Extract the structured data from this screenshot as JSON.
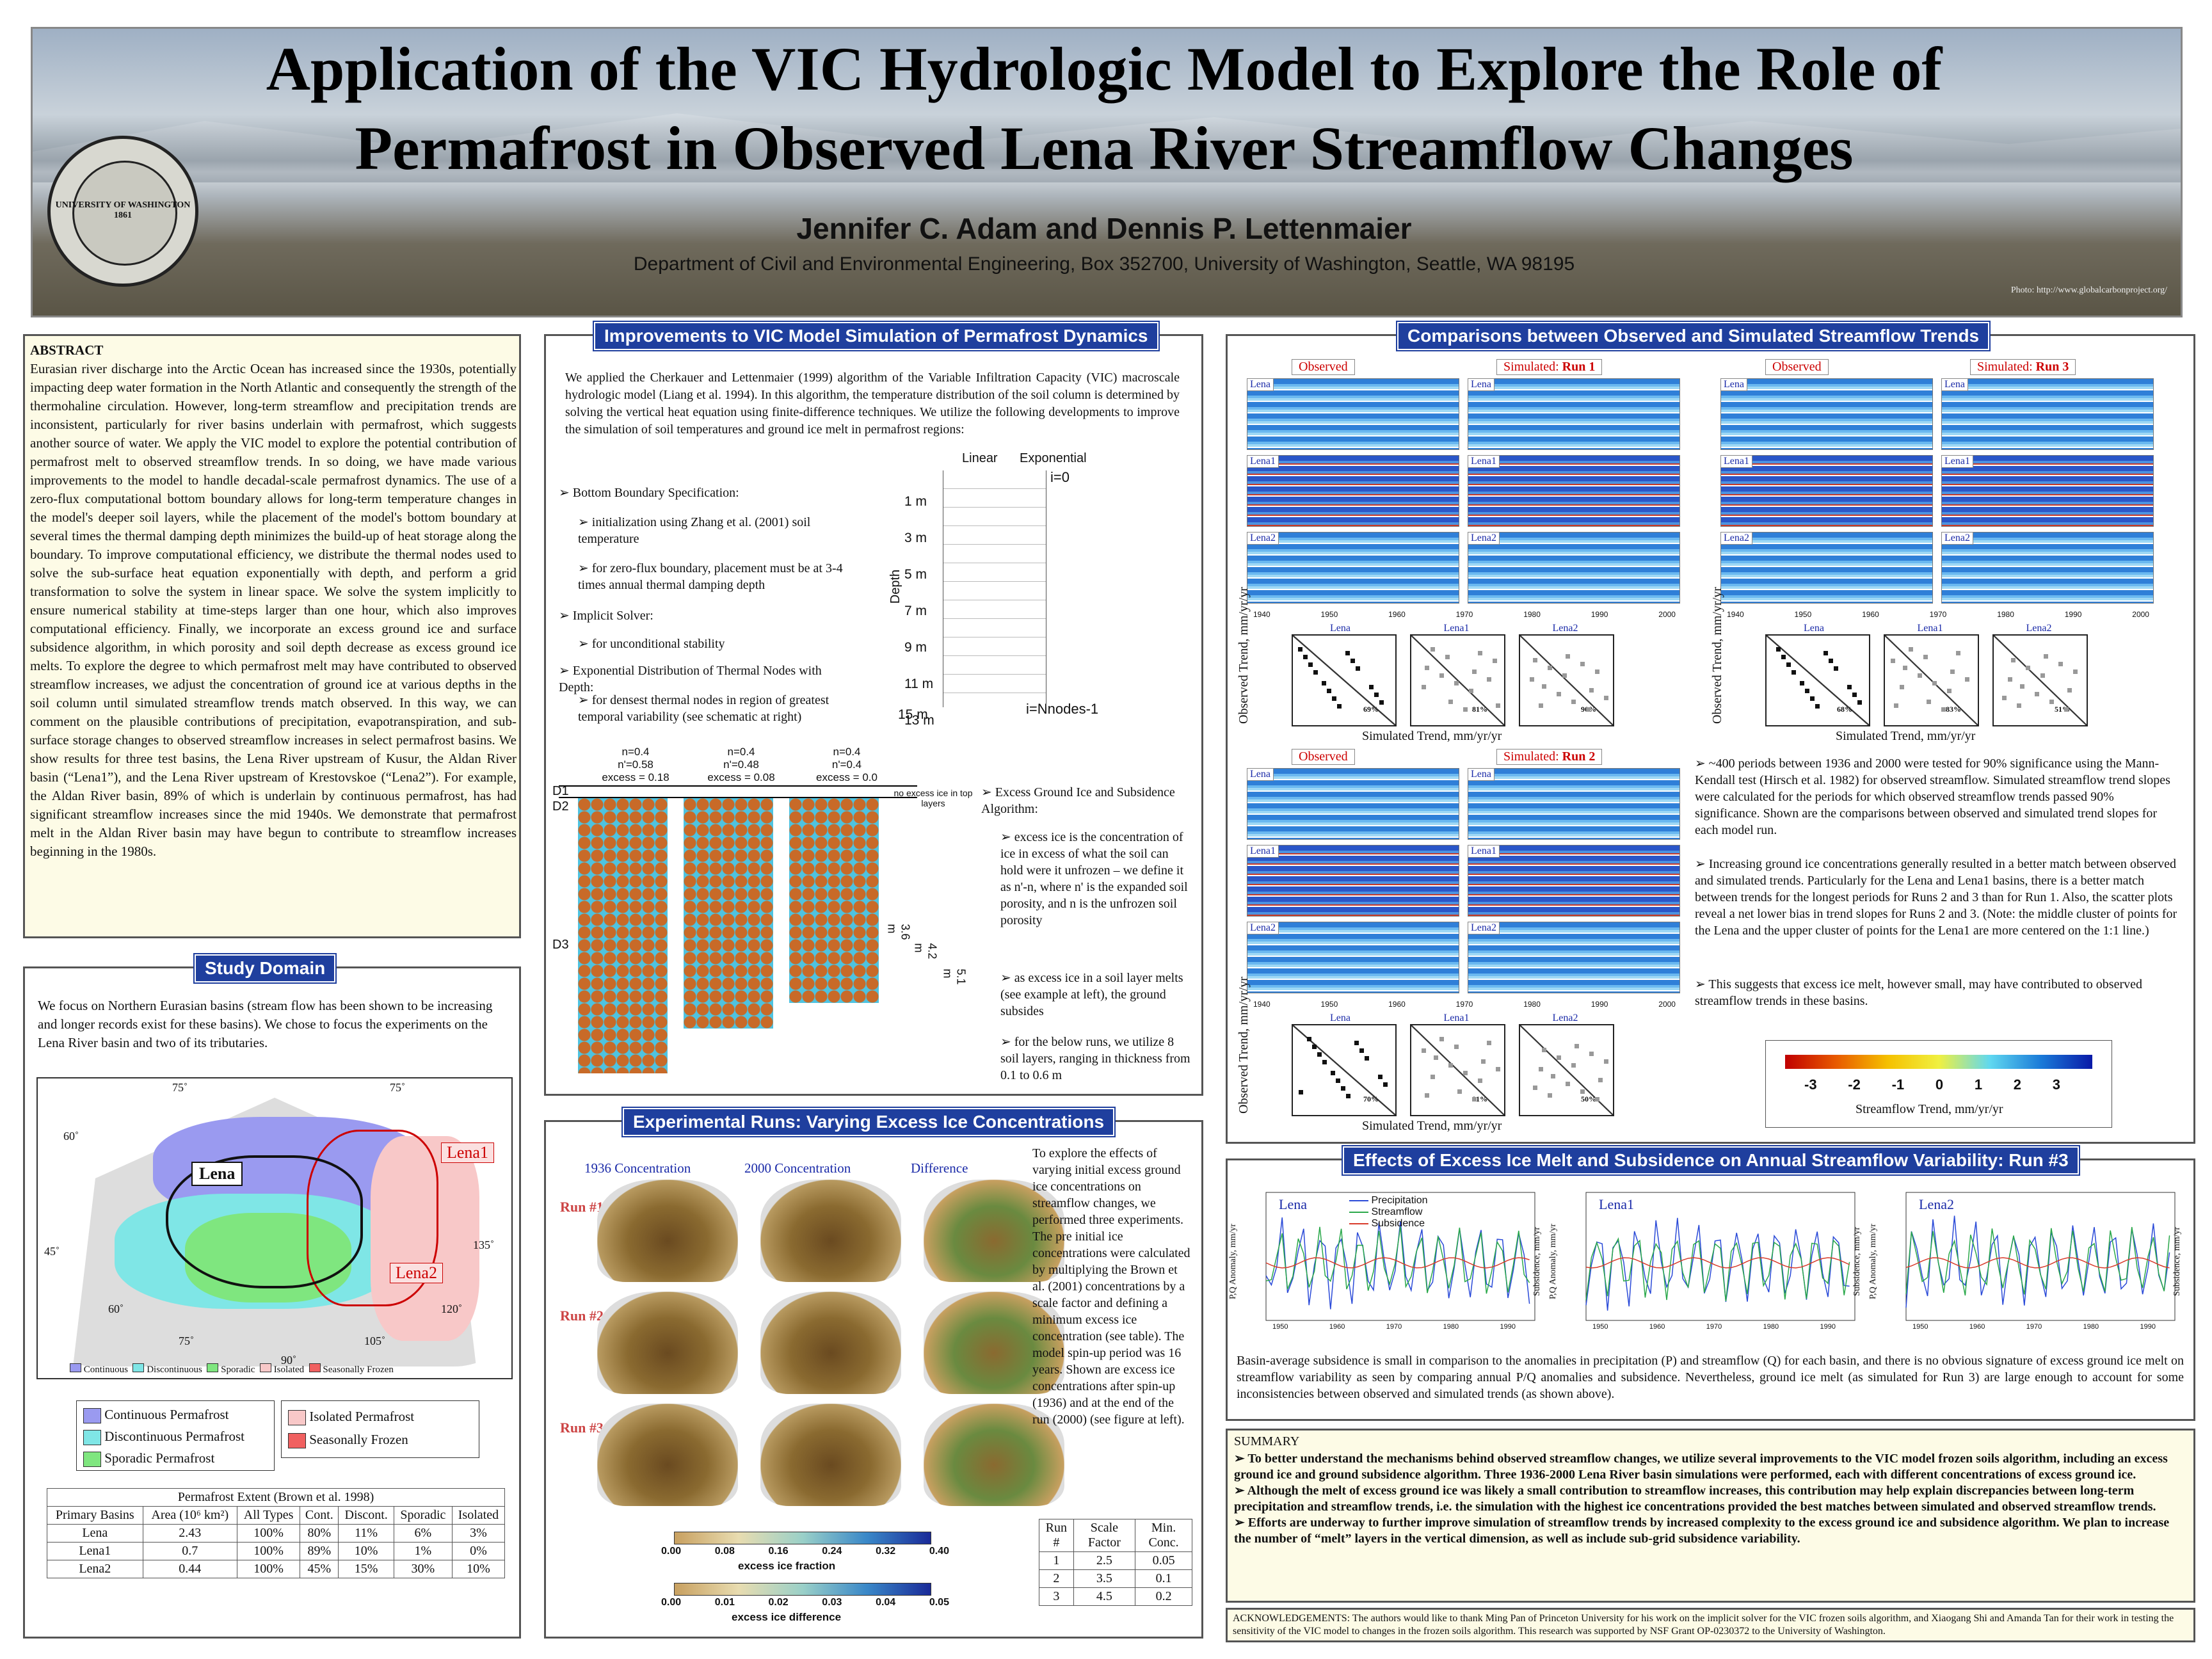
{
  "header": {
    "title_line1": "Application of the VIC Hydrologic Model to Explore the Role of",
    "title_line2": "Permafrost in Observed Lena River Streamflow Changes",
    "authors": "Jennifer C. Adam and Dennis P. Lettenmaier",
    "department": "Department of Civil and Environmental Engineering, Box 352700, University of Washington, Seattle, WA  98195",
    "photo_credit": "Photo: http://www.globalcarbonproject.org/",
    "seal_text": "UNIVERSITY OF WASHINGTON 1861"
  },
  "abstract": {
    "heading": "ABSTRACT",
    "text": "Eurasian river discharge into the Arctic Ocean has increased since the 1930s, potentially impacting deep water formation in the North Atlantic and consequently the strength of the thermohaline circulation.  However, long-term streamflow and precipitation trends are inconsistent, particularly for river basins underlain with permafrost, which suggests another source of water.  We apply the VIC model to explore the potential contribution of permafrost melt to observed streamflow trends.   In so doing, we have made various improvements to the model to handle decadal-scale permafrost dynamics.  The use of a zero-flux computational bottom boundary allows for long-term temperature changes in the model's deeper soil layers, while the placement of the model's bottom boundary at several times the thermal damping depth minimizes the build-up of heat storage along the boundary.   To improve computational efficiency, we distribute the thermal nodes used to solve the sub-surface heat equation exponentially with depth, and perform a grid transformation to solve the system in linear space.  We solve the system implicitly to ensure numerical stability at time-steps larger than one hour, which also improves computational efficiency.   Finally, we incorporate an excess ground ice and surface subsidence algorithm, in which porosity and soil depth decrease as excess ground ice melts.  To explore the degree to which permafrost melt may have contributed to observed streamflow increases, we adjust the concentration of ground ice at various depths in the soil column until simulated streamflow trends match observed.  In this way, we can comment on the plausible contributions of precipitation, evapotranspiration, and sub-surface storage changes to observed streamflow increases in select permafrost basins.  We show results for three test basins, the Lena River upstream of Kusur, the Aldan River basin (“Lena1”), and the Lena River upstream of Krestovskoe (“Lena2”).  For example, the Aldan River basin, 89% of which is underlain by continuous permafrost, has had significant streamflow increases since the mid 1940s.  We demonstrate that permafrost melt in the Aldan River basin may have begun to contribute to streamflow increases beginning in the 1980s."
  },
  "study": {
    "title": "Study Domain",
    "text": "We focus on Northern Eurasian basins (stream flow has been shown to be increasing and longer records exist for these basins).  We chose to focus the experiments on the Lena River basin and two of its tributaries.",
    "map_labels": {
      "lena": "Lena",
      "lena1": "Lena1",
      "lena2": "Lena2"
    },
    "map_lons": [
      "75˚",
      "75˚",
      "60˚",
      "45˚",
      "60˚",
      "75˚",
      "90˚",
      "105˚",
      "120˚",
      "135˚"
    ],
    "map_legend": [
      "Continuous",
      "Discontinuous",
      "Sporadic",
      "Isolated",
      "Seasonally Frozen"
    ],
    "legend_left": [
      "Continuous Permafrost",
      "Discontinuous Permafrost",
      "Sporadic Permafrost"
    ],
    "legend_right": [
      "Isolated Permafrost",
      "Seasonally Frozen"
    ],
    "colors": {
      "continuous": "#9a9af0",
      "discontinuous": "#7fe6e6",
      "sporadic": "#7fe67f",
      "isolated": "#f8c8c8",
      "seasonal": "#f06060"
    },
    "table": {
      "caption": "Permafrost Extent (Brown et al. 1998)",
      "headers": [
        "Primary Basins",
        "Area (10⁶ km²)",
        "All Types",
        "Cont.",
        "Discont.",
        "Sporadic",
        "Isolated"
      ],
      "rows": [
        [
          "Lena",
          "2.43",
          "100%",
          "80%",
          "11%",
          "6%",
          "3%"
        ],
        [
          "Lena1",
          "0.7",
          "100%",
          "89%",
          "10%",
          "1%",
          "0%"
        ],
        [
          "Lena2",
          "0.44",
          "100%",
          "45%",
          "15%",
          "30%",
          "10%"
        ]
      ]
    }
  },
  "improve": {
    "title": "Improvements to VIC Model Simulation of Permafrost Dynamics",
    "intro": "We applied the Cherkauer and Lettenmaier (1999) algorithm of the Variable Infiltration Capacity (VIC) macroscale hydrologic model (Liang et al. 1994).  In this algorithm, the temperature distribution of the soil column is determined by solving the vertical heat equation using finite-difference techniques.   We utilize the following developments to improve the simulation of soil temperatures and ground ice melt in permafrost regions:",
    "bullets": [
      "➢ Bottom Boundary Specification:",
      "➢ initialization using Zhang et al. (2001) soil temperature",
      "➢ for zero-flux boundary, placement must be at 3-4 times annual thermal damping depth",
      "➢ Implicit Solver:",
      "➢ for unconditional stability",
      "➢ Exponential Distribution of Thermal Nodes with Depth:",
      "➢ for densest thermal nodes in region of greatest temporal variability (see schematic at right)"
    ],
    "schematic": {
      "col_linear": "Linear",
      "col_exp": "Exponential",
      "depths": [
        "1 m",
        "3 m",
        "5 m",
        "7 m",
        "9 m",
        "11 m",
        "13 m",
        "15 m"
      ],
      "axis": "Depth",
      "top_label": "i=0",
      "bottom_label": "i=Nnodes-1"
    },
    "columns": [
      {
        "n": "n=0.4",
        "np": "n'=0.58",
        "ex": "excess = 0.18",
        "depth": "5.1 m"
      },
      {
        "n": "n=0.4",
        "np": "n'=0.48",
        "ex": "excess = 0.08",
        "depth": "4.2 m"
      },
      {
        "n": "n=0.4",
        "np": "n'=0.4",
        "ex": "excess = 0.0",
        "depth": "3.6 m"
      }
    ],
    "d_labels": [
      "D1",
      "D2",
      "D3"
    ],
    "no_excess_note": "no excess ice in top layers",
    "right_bullets": [
      "➢ Excess Ground Ice and Subsidence Algorithm:",
      "➢ excess ice is the concentration of ice in excess of what the soil can hold were it unfrozen – we define it as n'-n, where n' is the expanded soil porosity, and n is the unfrozen soil porosity",
      "➢ as excess ice in a soil layer melts (see example at left), the ground subsides",
      "➢ for the below runs, we utilize 8 soil layers, ranging in thickness from 0.1 to 0.6 m"
    ]
  },
  "exp": {
    "title": "Experimental Runs: Varying Excess Ice Concentrations",
    "col_heads": [
      "1936 Concentration",
      "2000 Concentration",
      "Difference"
    ],
    "runs": [
      "Run #1",
      "Run #2",
      "Run #3"
    ],
    "text": "To explore the effects of varying initial excess ground ice concentrations on streamflow changes, we performed three experiments.  The pre initial ice concentrations were calculated by multiplying the Brown et al. (2001) concentrations by a scale factor and defining a minimum excess ice concentration (see table).  The model spin-up period was 16 years.  Shown are excess ice concentrations after spin-up (1936) and at the end of the run (2000) (see figure at left).",
    "cb1_ticks": [
      "0.00",
      "0.08",
      "0.16",
      "0.24",
      "0.32",
      "0.40"
    ],
    "cb1_label": "excess ice fraction",
    "cb2_ticks": [
      "0.00",
      "0.01",
      "0.02",
      "0.03",
      "0.04",
      "0.05"
    ],
    "cb2_label": "excess ice difference",
    "table": {
      "headers": [
        "Run #",
        "Scale Factor",
        "Min. Conc."
      ],
      "rows": [
        [
          "1",
          "2.5",
          "0.05"
        ],
        [
          "2",
          "3.5",
          "0.1"
        ],
        [
          "3",
          "4.5",
          "0.2"
        ]
      ]
    }
  },
  "comp": {
    "title": "Comparisons between Observed and Simulated Streamflow Trends",
    "observed": "Observed",
    "simulated_prefix": "Simulated: ",
    "runs": [
      "Run 1",
      "Run 3",
      "Run 2"
    ],
    "basins": [
      "Lena",
      "Lena1",
      "Lena2"
    ],
    "years": [
      "1940",
      "1950",
      "1960",
      "1970",
      "1980",
      "1990",
      "2000"
    ],
    "scatter_ylabel": "Observed Trend, mm/yr/yr",
    "scatter_xlabel": "Simulated Trend, mm/yr/yr",
    "pct_run1": [
      "69%",
      "81%",
      "90%"
    ],
    "pct_run3": [
      "68%",
      "83%",
      "51%"
    ],
    "pct_run2": [
      "70%",
      "81%",
      "50%"
    ],
    "bullets": [
      "➢ ~400 periods between 1936 and 2000 were tested for 90% significance using the Mann-Kendall test (Hirsch et al. 1982) for observed streamflow.  Simulated streamflow trend slopes were calculated for the periods for which observed streamflow trends passed 90% significance.  Shown are the comparisons between observed and simulated trend slopes for each model run.",
      "➢ Increasing ground ice concentrations generally resulted in a better match between observed and simulated trends.  Particularly for the Lena and Lena1 basins, there is a better match between trends for the longest periods for Runs 2 and 3 than for Run 1.  Also, the scatter plots reveal a net lower bias in trend slopes for Runs 2 and 3.  (Note: the middle cluster of points for the Lena and the upper cluster of points for the Lena1 are more centered on the 1:1 line.)",
      "➢ This suggests that excess ice melt, however small, may have contributed to observed streamflow trends in these basins."
    ],
    "colorbar_ticks": [
      "-3",
      "-2",
      "-1",
      "0",
      "1",
      "2",
      "3"
    ],
    "colorbar_label": "Streamflow Trend, mm/yr/yr"
  },
  "effects": {
    "title": "Effects of Excess Ice Melt and Subsidence on Annual Streamflow Variability: Run #3",
    "legend": [
      "Precipitation",
      "Streamflow",
      "Subsidence"
    ],
    "basins": [
      "Lena",
      "Lena1",
      "Lena2"
    ],
    "ylabel": "P,Q Anomaly, mm/yr",
    "y2label": "Subsidence, mm/yr",
    "years": [
      "1950",
      "1960",
      "1970",
      "1980",
      "1990"
    ],
    "text": "Basin-average subsidence is small in comparison to the anomalies in precipitation (P) and streamflow (Q) for each basin, and there is no obvious signature of excess ground ice melt on streamflow variability as seen by comparing annual P/Q anomalies and subsidence.  Nevertheless, ground ice melt (as simulated for Run 3) are large enough to account for some inconsistencies between observed and simulated trends (as shown above)."
  },
  "summary": {
    "heading": "SUMMARY",
    "items": [
      "➢   To better understand the mechanisms behind observed streamflow changes, we utilize several improvements to the VIC model frozen soils algorithm, including an excess ground ice and ground subsidence algorithm.  Three 1936-2000 Lena River basin simulations were performed, each with different concentrations of excess ground ice.",
      "➢   Although the melt of excess ground ice was likely a small contribution to streamflow increases, this contribution may help explain discrepancies between long-term precipitation and streamflow trends, i.e. the simulation with the highest ice concentrations provided the best matches between simulated and observed streamflow trends.",
      "➢   Efforts are underway to further improve simulation of streamflow trends by increased complexity to the excess ground ice and subsidence algorithm.  We plan to increase the number of “melt” layers in the vertical dimension, as well as include sub-grid subsidence variability."
    ]
  },
  "ack": "ACKNOWLEDGEMENTS: The authors would like to thank  Ming Pan of Princeton University for his work on the implicit solver for the VIC frozen soils algorithm, and Xiaogang Shi and Amanda Tan for their work in testing the sensitivity of the VIC model to changes in the frozen soils algorithm. This research was supported by NSF Grant OP-0230372 to the University of Washington."
}
